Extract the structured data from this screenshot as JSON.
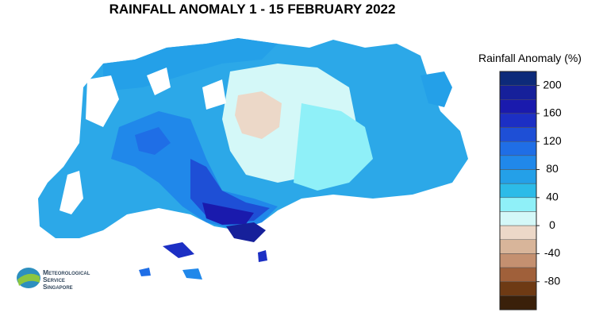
{
  "title": "RAINFALL ANOMALY 1 - 15 FEBRUARY 2022",
  "legend": {
    "title": "Rainfall Anomaly (%)",
    "bins": [
      220,
      200,
      180,
      160,
      140,
      120,
      100,
      80,
      60,
      40,
      20,
      0,
      -20,
      -40,
      -60,
      -80,
      -100,
      -120
    ],
    "colors": [
      "#0d2a7a",
      "#16209a",
      "#1a1aad",
      "#1c2fc4",
      "#1e4fd6",
      "#1f6ee6",
      "#2088ea",
      "#24a0e8",
      "#2cbbe8",
      "#8ff0f8",
      "#d4f8f8",
      "#ecd8c8",
      "#d8b59a",
      "#c49070",
      "#a0603a",
      "#6e3a14",
      "#3a200a"
    ],
    "ticks": [
      200,
      160,
      120,
      80,
      40,
      0,
      -40,
      -80
    ]
  },
  "logo": {
    "lines": [
      "Meteorological",
      "Service",
      "Singapore"
    ]
  }
}
